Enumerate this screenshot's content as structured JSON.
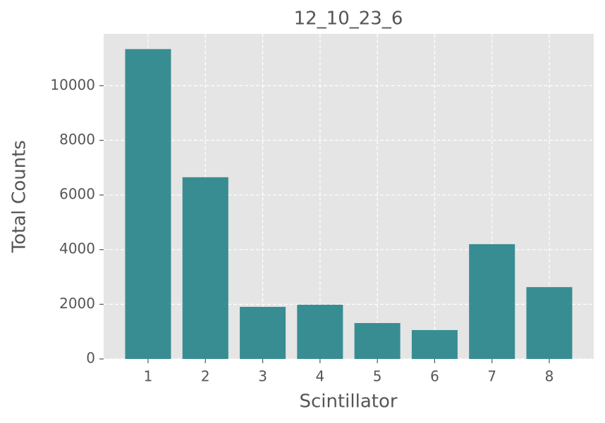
{
  "chart_data": {
    "type": "bar",
    "title": "12_10_23_6",
    "x_label": "Scintillator",
    "y_label": "Total Counts",
    "x": [
      1,
      2,
      3,
      4,
      5,
      6,
      7,
      8
    ],
    "values": [
      11340,
      6650,
      1907,
      1985,
      1314,
      1057,
      4201,
      2629
    ],
    "color": "#388d92",
    "xlim": [
      0.225,
      8.775
    ],
    "xticks": [
      1,
      2,
      3,
      4,
      5,
      6,
      7,
      8
    ],
    "ylim": [
      0,
      11900
    ],
    "yticks": [
      0,
      2000,
      4000,
      6000,
      8000,
      10000
    ],
    "grid": true
  }
}
